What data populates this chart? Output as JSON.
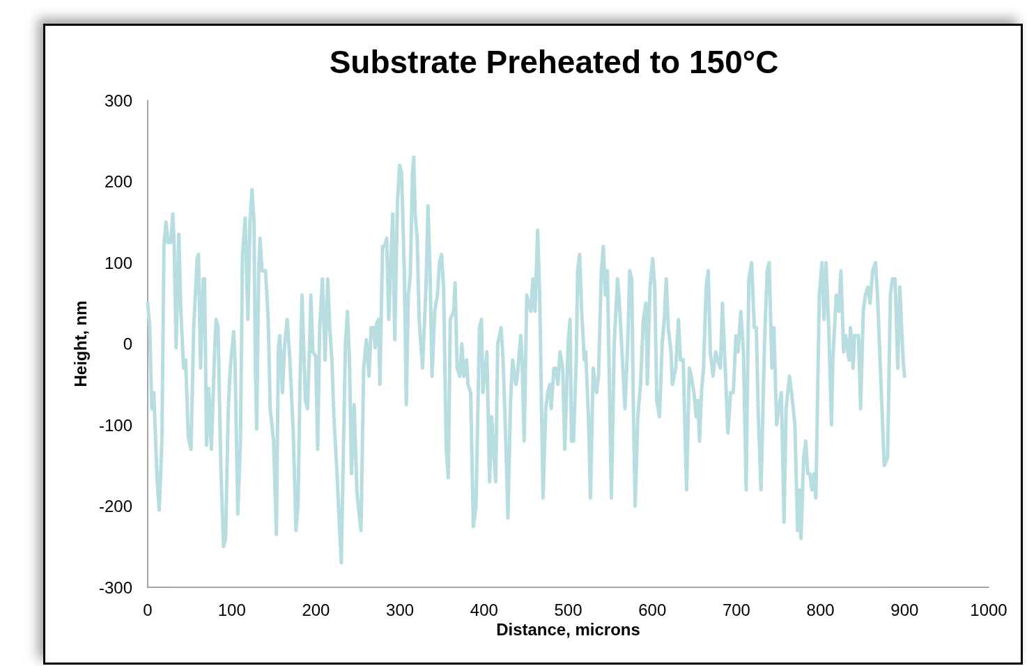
{
  "chart_data": {
    "type": "line",
    "title": "Substrate Preheated to 150°C",
    "xlabel": "Distance, microns",
    "ylabel": "Height, nm",
    "xlim": [
      0,
      1000
    ],
    "xticks": [
      0,
      100,
      200,
      300,
      400,
      500,
      600,
      700,
      800,
      900,
      1000
    ],
    "ylim": [
      -300,
      300
    ],
    "yticks": [
      -300,
      -200,
      -100,
      0,
      100,
      200,
      300
    ],
    "grid": false,
    "marker": "none",
    "line_style": "solid",
    "series": [
      {
        "color": "#b7dde0",
        "x": [
          0,
          2.4,
          4.8,
          7.2,
          11.3,
          13.7,
          16.9,
          19.3,
          21.7,
          24.2,
          27.4,
          29.8,
          31.4,
          33.8,
          37.0,
          39.4,
          42.7,
          45.1,
          48.3,
          51.5,
          54.7,
          58.8,
          60.4,
          62.8,
          66.0,
          67.6,
          70.0,
          72.5,
          75.7,
          79.7,
          81.3,
          83.7,
          86.9,
          90.2,
          92.6,
          95.8,
          98.2,
          102.2,
          103.8,
          107.1,
          110.3,
          112.7,
          115.9,
          119.1,
          121.6,
          124.0,
          126.4,
          128.0,
          129.6,
          132.0,
          133.6,
          136.0,
          140.1,
          143.3,
          145.7,
          149.7,
          153.0,
          155.4,
          157.0,
          160.2,
          162.6,
          165.8,
          169.1,
          173.1,
          176.3,
          178.7,
          181.1,
          183.5,
          187.6,
          190.0,
          192.4,
          194.0,
          196.4,
          199.7,
          202.1,
          204.5,
          207.7,
          210.9,
          214.1,
          216.5,
          219.0,
          221.4,
          224.6,
          227.8,
          230.2,
          235.1,
          237.5,
          239.9,
          242.3,
          245.5,
          248.7,
          250.4,
          253.6,
          256.8,
          260.0,
          263.2,
          265.7,
          268.9,
          270.5,
          272.1,
          274.5,
          276.1,
          279.3,
          281.8,
          284.2,
          286.6,
          289.0,
          291.4,
          293.8,
          297.0,
          299.5,
          301.9,
          305.1,
          307.5,
          309.9,
          312.3,
          314.8,
          316.4,
          318.0,
          320.4,
          322.8,
          326.8,
          330.9,
          333.3,
          335.7,
          338.1,
          341.3,
          344.5,
          347.0,
          349.4,
          351.8,
          355.0,
          357.4,
          359.8,
          363.9,
          365.5,
          367.9,
          371.1,
          373.5,
          375.9,
          379.2,
          380.8,
          384.0,
          387.2,
          390.4,
          394.5,
          396.9,
          398.5,
          403.3,
          406.5,
          409.0,
          410.6,
          413.8,
          416.2,
          420.2,
          422.6,
          425.8,
          428.3,
          431.5,
          433.9,
          437.9,
          439.5,
          443.6,
          445.2,
          447.6,
          450.8,
          453.2,
          455.6,
          458.0,
          460.5,
          463.7,
          466.1,
          470.1,
          473.3,
          475.8,
          478.2,
          479.8,
          483.0,
          485.4,
          487.8,
          490.2,
          493.5,
          495.9,
          499.9,
          502.3,
          503.9,
          506.3,
          509.6,
          511.2,
          513.6,
          516.0,
          519.2,
          520.8,
          524.1,
          526.5,
          529.7,
          533.7,
          536.1,
          539.4,
          541.8,
          544.2,
          546.6,
          549.0,
          551.4,
          554.7,
          558.7,
          560.3,
          563.5,
          567.5,
          570.8,
          573.2,
          575.6,
          577.2,
          579.6,
          582.8,
          586.0,
          589.3,
          592.5,
          594.1,
          597.3,
          600.5,
          602.9,
          605.4,
          608.6,
          611.8,
          614.2,
          616.6,
          619.0,
          622.3,
          623.9,
          627.9,
          631.1,
          633.5,
          636.8,
          639.2,
          640.8,
          644.0,
          646.4,
          649.6,
          652.1,
          654.5,
          656.1,
          658.5,
          660.9,
          664.1,
          666.5,
          669.0,
          672.2,
          675.4,
          677.8,
          681.0,
          683.4,
          686.7,
          689.9,
          693.1,
          696.3,
          699.5,
          702.0,
          705.2,
          708.4,
          711.6,
          714.8,
          718.1,
          721.3,
          723.7,
          726.1,
          729.3,
          733.4,
          736.6,
          739.0,
          742.2,
          744.6,
          747.9,
          750.3,
          753.5,
          756.7,
          759.1,
          763.1,
          765.6,
          769.6,
          772.8,
          775.2,
          776.8,
          780.0,
          782.5,
          784.9,
          787.3,
          789.7,
          792.1,
          794.5,
          798.6,
          801.8,
          804.2,
          806.6,
          809.8,
          813.1,
          814.7,
          818.7,
          821.9,
          824.3,
          827.5,
          829.9,
          834.0,
          835.6,
          838.8,
          840.4,
          842.8,
          845.2,
          847.7,
          850.9,
          853.3,
          856.5,
          858.9,
          862.1,
          865.4,
          867.8,
          875.8,
          879.8,
          883.1,
          885.5,
          888.7,
          891.9,
          894.3,
          898.3,
          900.0
        ],
        "values": [
          50,
          20,
          -80,
          -60,
          -170,
          -205,
          -120,
          120,
          150,
          125,
          125,
          160,
          125,
          -5,
          135,
          40,
          -30,
          -20,
          -115,
          -130,
          20,
          105,
          110,
          -30,
          80,
          80,
          -125,
          -55,
          -130,
          -5,
          30,
          20,
          -150,
          -250,
          -240,
          -80,
          -30,
          15,
          -20,
          -210,
          -120,
          110,
          155,
          30,
          150,
          190,
          150,
          -30,
          -105,
          90,
          130,
          90,
          90,
          30,
          -80,
          -120,
          -235,
          -5,
          10,
          -60,
          -5,
          30,
          -20,
          -110,
          -230,
          -200,
          -50,
          60,
          -70,
          -80,
          -5,
          60,
          -10,
          -15,
          -130,
          20,
          80,
          -20,
          80,
          20,
          -20,
          -90,
          -150,
          -220,
          -270,
          0,
          40,
          -20,
          -160,
          -75,
          -180,
          -200,
          -230,
          -30,
          5,
          -40,
          20,
          20,
          -5,
          25,
          30,
          -50,
          120,
          120,
          130,
          30,
          100,
          160,
          5,
          175,
          220,
          210,
          90,
          -75,
          60,
          85,
          210,
          230,
          160,
          130,
          30,
          -30,
          70,
          170,
          90,
          -40,
          40,
          60,
          100,
          110,
          70,
          -130,
          -165,
          30,
          40,
          75,
          -30,
          -40,
          0,
          -40,
          -20,
          -50,
          -60,
          -225,
          -200,
          20,
          30,
          -60,
          -10,
          -170,
          -90,
          -120,
          -170,
          0,
          20,
          -20,
          -120,
          -215,
          -70,
          -20,
          -50,
          -40,
          10,
          -20,
          -120,
          60,
          50,
          40,
          80,
          40,
          140,
          60,
          -190,
          -80,
          -60,
          -50,
          -80,
          -30,
          -30,
          -50,
          -10,
          -30,
          -130,
          0,
          30,
          -120,
          -120,
          -20,
          90,
          110,
          40,
          -20,
          -10,
          -90,
          -190,
          -30,
          -60,
          -40,
          90,
          120,
          60,
          90,
          -50,
          -190,
          0,
          80,
          60,
          0,
          -80,
          0,
          90,
          80,
          -60,
          -200,
          -90,
          -50,
          30,
          50,
          -50,
          70,
          105,
          70,
          -70,
          -90,
          0,
          30,
          80,
          20,
          -10,
          -50,
          -30,
          30,
          -20,
          -20,
          -120,
          -180,
          -30,
          -40,
          -60,
          -90,
          -70,
          -120,
          -60,
          -30,
          70,
          90,
          -10,
          -40,
          -10,
          -20,
          -30,
          50,
          -30,
          -110,
          -60,
          -60,
          10,
          -10,
          40,
          -10,
          -180,
          80,
          100,
          20,
          20,
          -90,
          -180,
          0,
          90,
          100,
          -30,
          20,
          -100,
          -80,
          -60,
          -220,
          -80,
          -40,
          -60,
          -100,
          -230,
          -180,
          -240,
          -140,
          -120,
          -160,
          -160,
          -180,
          -160,
          -190,
          60,
          100,
          30,
          100,
          20,
          -100,
          -20,
          60,
          40,
          90,
          -10,
          10,
          -20,
          20,
          -30,
          10,
          10,
          10,
          -80,
          40,
          60,
          70,
          50,
          90,
          100,
          60,
          -150,
          -140,
          60,
          80,
          80,
          -30,
          70,
          -20,
          -40
        ]
      }
    ]
  }
}
